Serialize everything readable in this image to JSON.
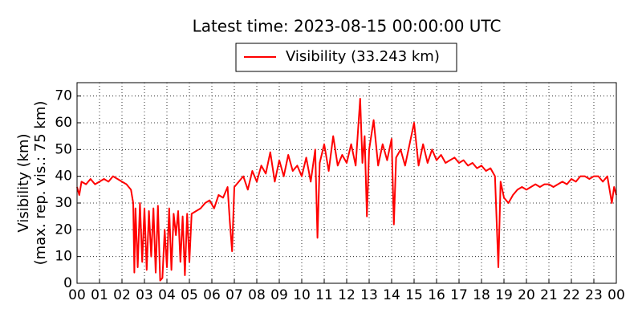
{
  "chart_data": {
    "type": "line",
    "title": "Latest time: 2023-08-15 00:00:00 UTC",
    "ylabel": [
      "Visibility (km)",
      "(max. rep. vis.: 75 km)"
    ],
    "x": [
      0,
      0.1,
      0.2,
      0.4,
      0.6,
      0.8,
      1.0,
      1.2,
      1.4,
      1.6,
      1.8,
      2.0,
      2.2,
      2.4,
      2.5,
      2.55,
      2.6,
      2.7,
      2.8,
      2.9,
      3.0,
      3.1,
      3.2,
      3.3,
      3.4,
      3.5,
      3.6,
      3.7,
      3.8,
      3.9,
      4.0,
      4.1,
      4.2,
      4.3,
      4.4,
      4.5,
      4.6,
      4.7,
      4.8,
      4.9,
      5.0,
      5.1,
      5.3,
      5.5,
      5.7,
      5.9,
      6.1,
      6.3,
      6.5,
      6.7,
      6.8,
      6.9,
      7.0,
      7.2,
      7.4,
      7.6,
      7.8,
      8.0,
      8.2,
      8.4,
      8.6,
      8.8,
      9.0,
      9.2,
      9.4,
      9.6,
      9.8,
      10.0,
      10.2,
      10.4,
      10.6,
      10.7,
      10.8,
      11.0,
      11.2,
      11.4,
      11.6,
      11.8,
      12.0,
      12.2,
      12.4,
      12.6,
      12.7,
      12.8,
      12.9,
      13.0,
      13.2,
      13.4,
      13.6,
      13.8,
      14.0,
      14.1,
      14.2,
      14.4,
      14.6,
      14.8,
      15.0,
      15.2,
      15.4,
      15.6,
      15.8,
      16.0,
      16.2,
      16.4,
      16.6,
      16.8,
      17.0,
      17.2,
      17.4,
      17.6,
      17.8,
      18.0,
      18.2,
      18.4,
      18.6,
      18.75,
      18.85,
      19.0,
      19.2,
      19.4,
      19.6,
      19.8,
      20.0,
      20.2,
      20.4,
      20.6,
      20.8,
      21.0,
      21.2,
      21.4,
      21.6,
      21.8,
      22.0,
      22.2,
      22.4,
      22.6,
      22.8,
      23.0,
      23.2,
      23.4,
      23.6,
      23.7,
      23.8,
      23.9,
      24.0
    ],
    "series": [
      {
        "name": "Visibility (33.243 km)",
        "color": "#ff0000",
        "values": [
          36,
          33,
          38,
          37,
          39,
          37,
          38,
          39,
          38,
          40,
          39,
          38,
          37,
          35,
          30,
          4,
          28,
          6,
          30,
          8,
          28,
          5,
          27,
          10,
          28,
          4,
          29,
          1,
          2,
          20,
          6,
          28,
          5,
          26,
          18,
          27,
          8,
          25,
          3,
          26,
          8,
          26,
          27,
          28,
          30,
          31,
          28,
          33,
          32,
          36,
          23,
          12,
          36,
          38,
          40,
          35,
          42,
          38,
          44,
          41,
          49,
          38,
          46,
          40,
          48,
          42,
          44,
          40,
          47,
          38,
          50,
          17,
          45,
          52,
          42,
          55,
          44,
          48,
          45,
          52,
          44,
          69,
          45,
          55,
          25,
          50,
          61,
          44,
          52,
          46,
          54,
          22,
          47,
          50,
          44,
          52,
          60,
          44,
          52,
          45,
          50,
          46,
          48,
          45,
          46,
          47,
          45,
          46,
          44,
          45,
          43,
          44,
          42,
          43,
          40,
          6,
          38,
          32,
          30,
          33,
          35,
          36,
          35,
          36,
          37,
          36,
          37,
          37,
          36,
          37,
          38,
          37,
          39,
          38,
          40,
          40,
          39,
          40,
          40,
          38,
          40,
          35,
          30,
          36,
          33
        ]
      }
    ],
    "xlim": [
      0,
      24
    ],
    "xticks": [
      {
        "value": 0,
        "label": "00"
      },
      {
        "value": 1,
        "label": "01"
      },
      {
        "value": 2,
        "label": "02"
      },
      {
        "value": 3,
        "label": "03"
      },
      {
        "value": 4,
        "label": "04"
      },
      {
        "value": 5,
        "label": "05"
      },
      {
        "value": 6,
        "label": "06"
      },
      {
        "value": 7,
        "label": "07"
      },
      {
        "value": 8,
        "label": "08"
      },
      {
        "value": 9,
        "label": "09"
      },
      {
        "value": 10,
        "label": "10"
      },
      {
        "value": 11,
        "label": "11"
      },
      {
        "value": 12,
        "label": "12"
      },
      {
        "value": 13,
        "label": "13"
      },
      {
        "value": 14,
        "label": "14"
      },
      {
        "value": 15,
        "label": "15"
      },
      {
        "value": 16,
        "label": "16"
      },
      {
        "value": 17,
        "label": "17"
      },
      {
        "value": 18,
        "label": "18"
      },
      {
        "value": 19,
        "label": "19"
      },
      {
        "value": 20,
        "label": "20"
      },
      {
        "value": 21,
        "label": "21"
      },
      {
        "value": 22,
        "label": "22"
      },
      {
        "value": 23,
        "label": "23"
      },
      {
        "value": 24,
        "label": "00"
      }
    ],
    "ylim": [
      0,
      75
    ],
    "yticks": [
      0,
      10,
      20,
      30,
      40,
      50,
      60,
      70
    ],
    "grid": true
  }
}
